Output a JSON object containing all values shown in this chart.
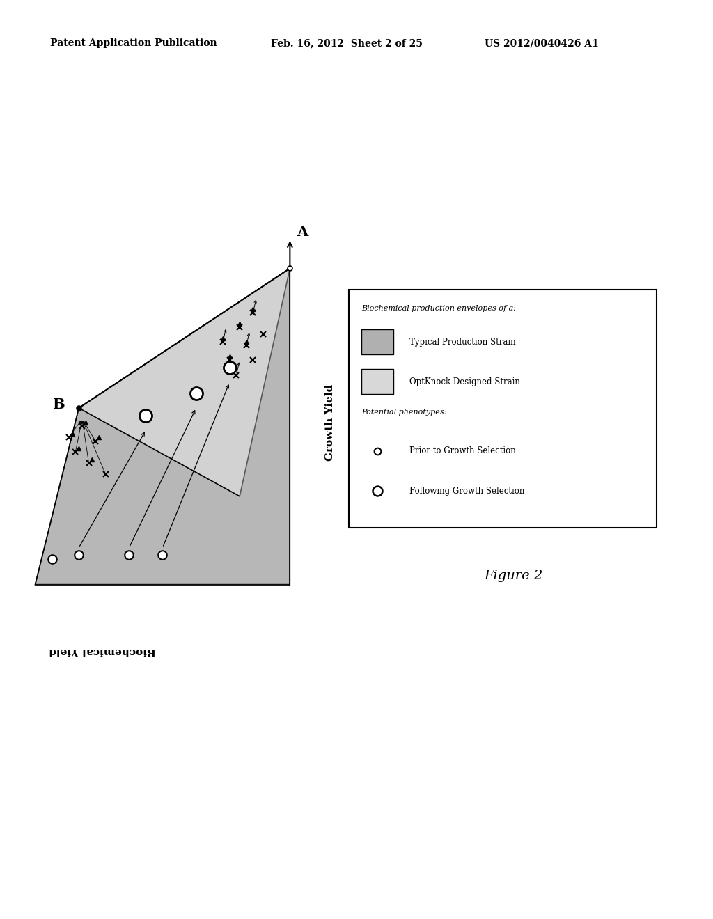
{
  "patent_header_left": "Patent Application Publication",
  "patent_header_mid": "Feb. 16, 2012  Sheet 2 of 25",
  "patent_header_right": "US 2012/0040426 A1",
  "figure_label": "Figure 2",
  "growth_yield_label": "Growth Yield",
  "biochemical_yield_label": "Biochemical Yield",
  "label_A": "A",
  "label_B": "B",
  "legend_title": "Biochemical production envelopes of a:",
  "legend_line1": "Typical Production Strain",
  "legend_line2": "OptKnock-Designed Strain",
  "legend_line3": "Potential phenotypes:",
  "legend_line4": "Prior to Growth Selection",
  "legend_line5": "Following Growth Selection",
  "background_color": "#ffffff",
  "shade_typical": "#b0b0b0",
  "shade_optknock": "#d8d8d8",
  "shade_lower": "#c8c8c8",
  "header_fontsize": 10,
  "figure_label_fontsize": 14
}
